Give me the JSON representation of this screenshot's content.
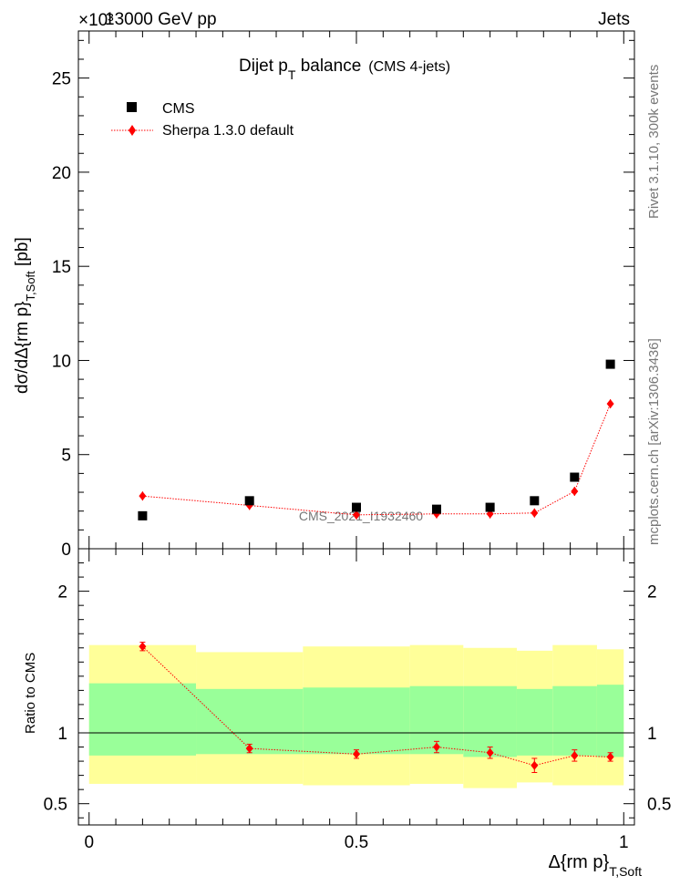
{
  "header": {
    "exponent_label": "×10³",
    "energy_label": "13000 GeV pp",
    "process_label": "Jets"
  },
  "side_labels": {
    "rivet": "Rivet 3.1.10,  300k events",
    "mcplots": "mcplots.cern.ch [arXiv:1306.3436]"
  },
  "watermark": "CMS_2021_I1932460",
  "colors": {
    "data": "#000000",
    "mc": "#ff0000",
    "band_inner": "#99ff99",
    "band_outer": "#ffff99"
  },
  "chart_data": [
    {
      "type": "scatter",
      "panel": "main",
      "title_main": "Dijet p",
      "title_sub": "T",
      "title_rest": " balance",
      "title_note": "(CMS 4-jets)",
      "ylabel": "dσ/dΔ{rm p}",
      "ylabel_sub": "T,Soft",
      "ylabel_unit": " [pb]",
      "xlim": [
        -0.02,
        1.02
      ],
      "ylim": [
        0,
        27.5
      ],
      "yticks": [
        0,
        5,
        10,
        15,
        20,
        25
      ],
      "ytick_labels": [
        "0",
        "5",
        "10",
        "15",
        "20",
        "25"
      ],
      "legend_position": "top-left",
      "series": [
        {
          "name": "CMS",
          "marker": "square",
          "x": [
            0.1,
            0.3,
            0.5,
            0.65,
            0.75,
            0.833,
            0.908,
            0.975
          ],
          "y": [
            1.75,
            2.55,
            2.2,
            2.1,
            2.2,
            2.55,
            3.8,
            9.8
          ]
        },
        {
          "name": "Sherpa 1.3.0 default",
          "marker": "diamond",
          "line": "dotted",
          "x": [
            0.1,
            0.3,
            0.5,
            0.65,
            0.75,
            0.833,
            0.908,
            0.975
          ],
          "y": [
            2.8,
            2.3,
            1.8,
            1.85,
            1.85,
            1.9,
            3.05,
            7.7
          ]
        }
      ]
    },
    {
      "type": "line",
      "panel": "ratio",
      "ylabel": "Ratio to CMS",
      "xlabel": "Δ{rm p}",
      "xlabel_sub": "T,Soft",
      "xlim": [
        -0.02,
        1.02
      ],
      "ylim": [
        0.35,
        2.3
      ],
      "xticks": [
        0,
        0.5,
        1
      ],
      "xtick_labels": [
        "0",
        "0.5",
        "1"
      ],
      "yticks": [
        0.5,
        1,
        2
      ],
      "ytick_labels": [
        "0.5",
        "1",
        "2"
      ],
      "reference_line": 1,
      "bins": [
        {
          "lo": 0.0,
          "hi": 0.2,
          "inner": [
            0.84,
            1.35
          ],
          "outer": [
            0.64,
            1.62
          ]
        },
        {
          "lo": 0.2,
          "hi": 0.4,
          "inner": [
            0.85,
            1.31
          ],
          "outer": [
            0.64,
            1.57
          ]
        },
        {
          "lo": 0.4,
          "hi": 0.6,
          "inner": [
            0.85,
            1.32
          ],
          "outer": [
            0.63,
            1.61
          ]
        },
        {
          "lo": 0.6,
          "hi": 0.7,
          "inner": [
            0.85,
            1.33
          ],
          "outer": [
            0.64,
            1.62
          ]
        },
        {
          "lo": 0.7,
          "hi": 0.8,
          "inner": [
            0.83,
            1.33
          ],
          "outer": [
            0.61,
            1.6
          ]
        },
        {
          "lo": 0.8,
          "hi": 0.867,
          "inner": [
            0.84,
            1.31
          ],
          "outer": [
            0.65,
            1.58
          ]
        },
        {
          "lo": 0.867,
          "hi": 0.95,
          "inner": [
            0.84,
            1.33
          ],
          "outer": [
            0.63,
            1.62
          ]
        },
        {
          "lo": 0.95,
          "hi": 1.0,
          "inner": [
            0.83,
            1.34
          ],
          "outer": [
            0.63,
            1.59
          ]
        }
      ],
      "series": [
        {
          "name": "Sherpa 1.3.0 default",
          "x": [
            0.1,
            0.3,
            0.5,
            0.65,
            0.75,
            0.833,
            0.908,
            0.975
          ],
          "y": [
            1.61,
            0.89,
            0.85,
            0.9,
            0.86,
            0.77,
            0.84,
            0.83
          ],
          "err": [
            0.03,
            0.03,
            0.03,
            0.04,
            0.04,
            0.05,
            0.04,
            0.03
          ]
        }
      ]
    }
  ]
}
